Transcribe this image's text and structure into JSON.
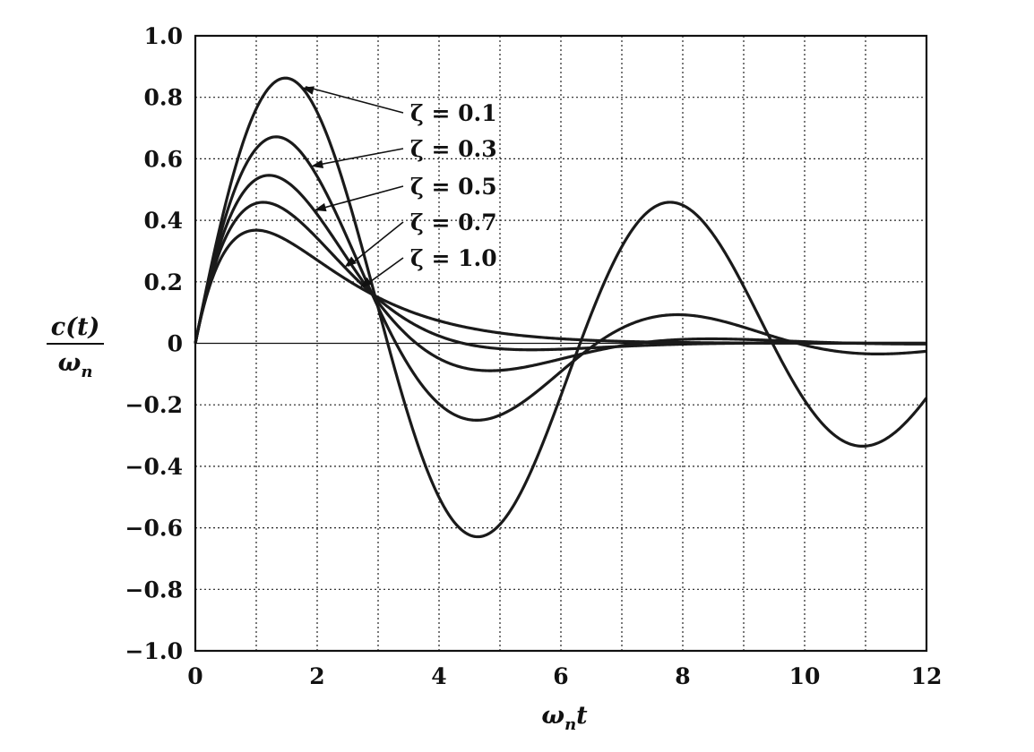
{
  "chart_data": {
    "type": "line",
    "xlabel": "ωnt",
    "ylabel_num": "c(t)",
    "ylabel_den": "ωn",
    "xlim": [
      0,
      12
    ],
    "ylim": [
      -1.0,
      1.0
    ],
    "x_ticks": [
      "0",
      "2",
      "4",
      "6",
      "8",
      "10",
      "12"
    ],
    "y_ticks": [
      "1.0",
      "0.8",
      "0.6",
      "0.4",
      "0.2",
      "0",
      "−0.2",
      "−0.4",
      "−0.6",
      "−0.8",
      "−1.0"
    ],
    "grid": true,
    "series": [
      {
        "name": "ζ = 0.1",
        "zeta": 0.1
      },
      {
        "name": "ζ = 0.3",
        "zeta": 0.3
      },
      {
        "name": "ζ = 0.5",
        "zeta": 0.5
      },
      {
        "name": "ζ = 0.7",
        "zeta": 0.7
      },
      {
        "name": "ζ = 1.0",
        "zeta": 1.0
      }
    ]
  }
}
